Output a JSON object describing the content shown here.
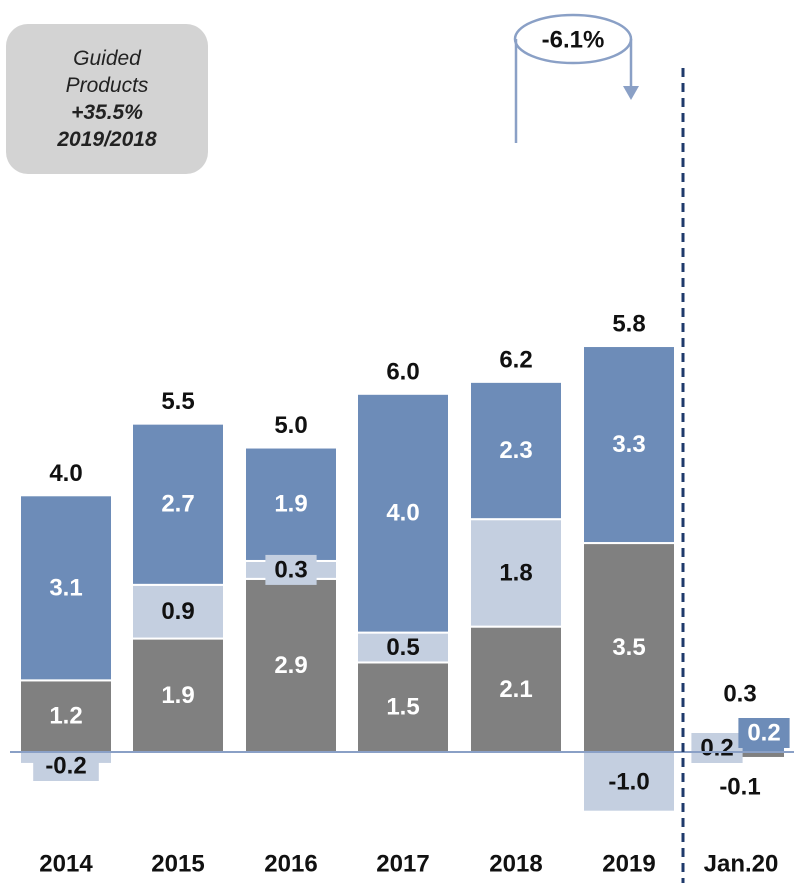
{
  "colors": {
    "dark": "#808080",
    "light": "#c4cfe0",
    "blue": "#6d8cb8",
    "axis": "#8aa0c6",
    "divider": "#1f3a6b"
  },
  "note": {
    "line1": "Guided",
    "line2": "Products",
    "line3": "+35.5%",
    "line4": "2019/2018"
  },
  "callout": {
    "label": "-6.1%"
  },
  "chart_data": {
    "type": "bar",
    "stacked": true,
    "categories": [
      "2014",
      "2015",
      "2016",
      "2017",
      "2018",
      "2019",
      "Jan.20"
    ],
    "series": [
      {
        "color": "#808080",
        "values": [
          1.2,
          1.9,
          2.9,
          1.5,
          2.1,
          3.5,
          -0.1
        ]
      },
      {
        "color": "#c4cfe0",
        "values": [
          -0.2,
          0.9,
          0.3,
          0.5,
          1.8,
          -1.0,
          0.2
        ]
      },
      {
        "color": "#6d8cb8",
        "values": [
          3.1,
          2.7,
          1.9,
          4.0,
          2.3,
          3.3,
          0.2
        ]
      }
    ],
    "segment_labels": [
      [
        "1.2",
        "1.9",
        "2.9",
        "1.5",
        "2.1",
        "3.5",
        "-0.1"
      ],
      [
        "-0.2",
        "0.9",
        "0.3",
        "0.5",
        "1.8",
        "-1.0",
        "0.2"
      ],
      [
        "3.1",
        "2.7",
        "1.9",
        "4.0",
        "2.3",
        "3.3",
        "0.2"
      ]
    ],
    "totals": [
      "4.0",
      "5.5",
      "5.0",
      "6.0",
      "6.2",
      "5.8",
      "0.3"
    ],
    "ylim": [
      -1.3,
      7.0
    ],
    "grid": false,
    "legend": "none"
  }
}
